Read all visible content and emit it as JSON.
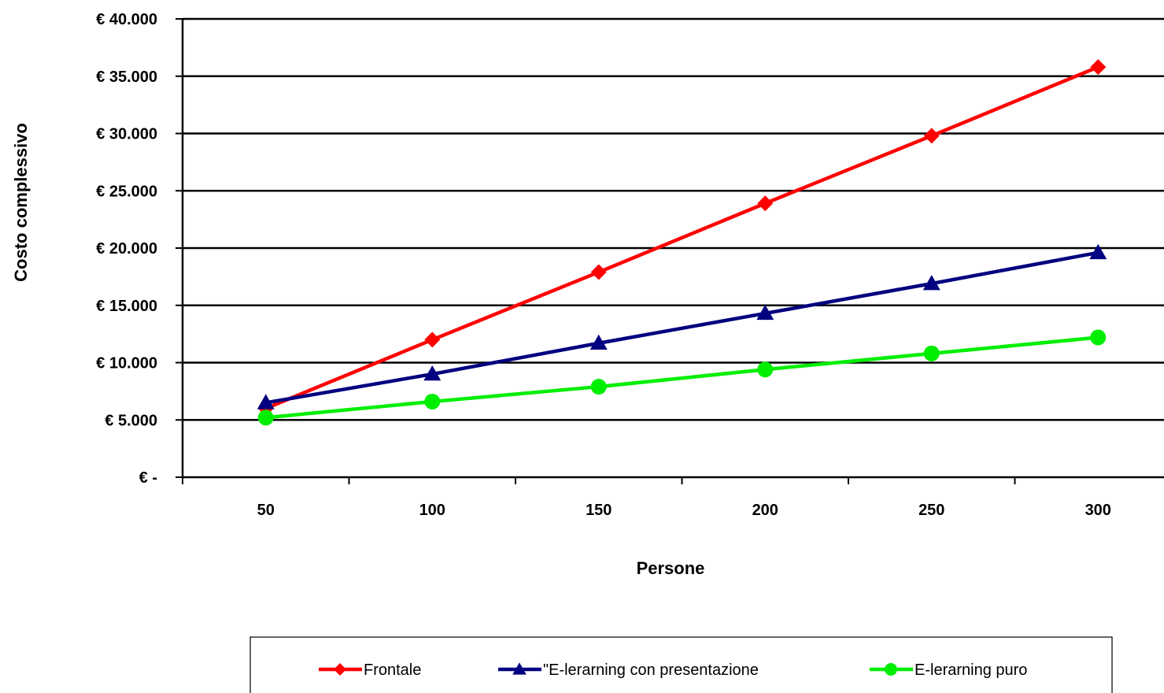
{
  "chart_data": {
    "type": "line",
    "title": "",
    "xlabel": "Persone",
    "ylabel": "Costo complessivo",
    "categories": [
      "50",
      "100",
      "150",
      "200",
      "250",
      "300"
    ],
    "ylim": [
      0,
      40000
    ],
    "yticks": [
      0,
      5000,
      10000,
      15000,
      20000,
      25000,
      30000,
      35000,
      40000
    ],
    "ytick_labels": [
      "€ -",
      "€ 5.000",
      "€ 10.000",
      "€ 15.000",
      "€ 20.000",
      "€ 25.000",
      "€ 30.000",
      "€ 35.000",
      "€ 40.000"
    ],
    "grid": "horizontal",
    "legend_position": "bottom",
    "series": [
      {
        "name": "Frontale",
        "color": "#ff0000",
        "marker": "diamond",
        "values": [
          6000,
          12000,
          17900,
          23900,
          29800,
          35800
        ]
      },
      {
        "name": "\"E-lerarning con presentazione",
        "color": "#000080",
        "marker": "triangle",
        "values": [
          6500,
          9000,
          11700,
          14300,
          16900,
          19600
        ]
      },
      {
        "name": "E-lerarning puro",
        "color": "#00ee00",
        "marker": "circle",
        "values": [
          5200,
          6600,
          7900,
          9400,
          10800,
          12200
        ]
      }
    ]
  }
}
